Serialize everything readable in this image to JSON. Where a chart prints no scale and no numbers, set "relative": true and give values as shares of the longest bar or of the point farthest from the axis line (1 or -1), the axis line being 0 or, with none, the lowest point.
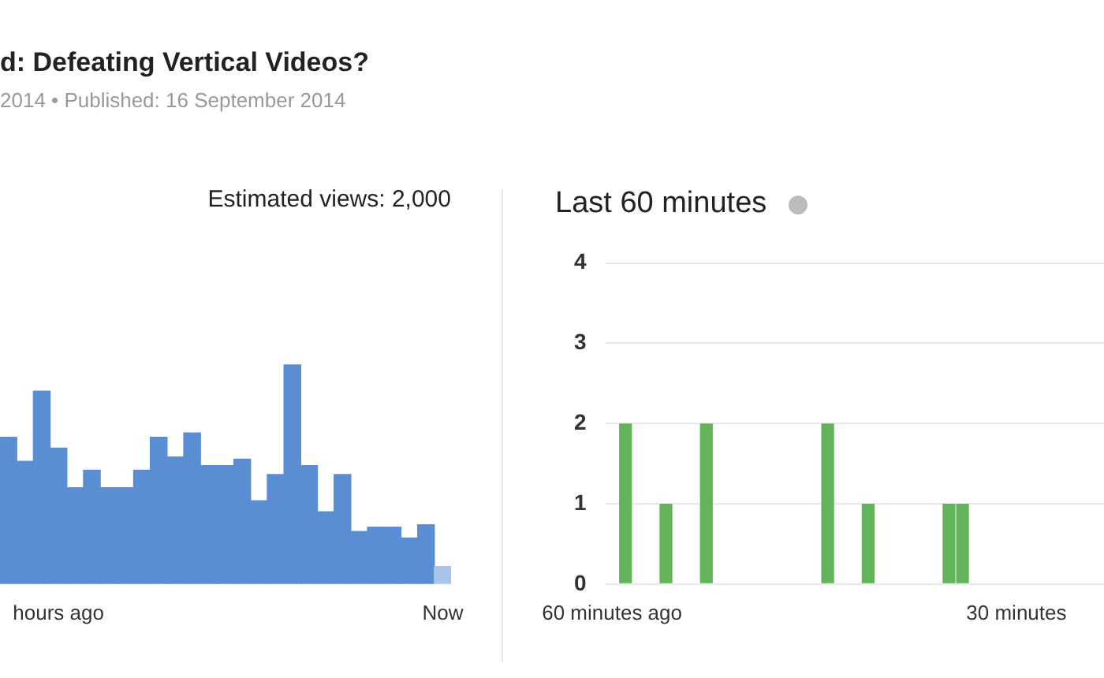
{
  "chart_data": [
    {
      "type": "bar",
      "title": "Estimated views: 2,000",
      "annotations": [
        "d: Defeating Vertical Videos?",
        "2014 • Published: 16 September 2014"
      ],
      "categories": [
        null,
        null,
        null,
        "hours ago",
        null,
        null,
        null,
        null,
        null,
        null,
        null,
        null,
        null,
        null,
        null,
        null,
        null,
        null,
        null,
        null,
        null,
        null,
        null,
        null,
        null,
        null,
        "Now"
      ],
      "relative": true,
      "series": [
        {
          "values": [
            0.67,
            0.56,
            0.88,
            0.62,
            0.44,
            0.52,
            0.44,
            0.44,
            0.52,
            0.67,
            0.58,
            0.69,
            0.54,
            0.54,
            0.57,
            0.38,
            0.5,
            1,
            0.54,
            0.33,
            0.5,
            0.24,
            0.26,
            0.26,
            0.21,
            0.27,
            0.08
          ],
          "colors": [
            "#5b8dd2",
            "#5b8dd2",
            "#5b8dd2",
            "#5b8dd2",
            "#5b8dd2",
            "#5b8dd2",
            "#5b8dd2",
            "#5b8dd2",
            "#5b8dd2",
            "#5b8dd2",
            "#5b8dd2",
            "#5b8dd2",
            "#5b8dd2",
            "#5b8dd2",
            "#5b8dd2",
            "#5b8dd2",
            "#5b8dd2",
            "#5b8dd2",
            "#5b8dd2",
            "#5b8dd2",
            "#5b8dd2",
            "#5b8dd2",
            "#5b8dd2",
            "#5b8dd2",
            "#5b8dd2",
            "#5b8dd2",
            "#a8c4ec"
          ]
        }
      ]
    },
    {
      "type": "bar",
      "title": "Last 60 minutes",
      "categories": [
        "60 minutes ago",
        null,
        null,
        null,
        null,
        null,
        null,
        null,
        null,
        null,
        null,
        null,
        null,
        null,
        null,
        null,
        null,
        null,
        null,
        null,
        null,
        null,
        null,
        null,
        null,
        null,
        null,
        null,
        null,
        null,
        "30 minutes",
        null,
        null,
        null,
        null,
        null,
        null
      ],
      "ylim": [
        0,
        4
      ],
      "yticks": [
        0,
        1,
        2,
        3,
        4
      ],
      "grid": "y",
      "series": [
        {
          "color": "#62b35a",
          "values": [
            0,
            2,
            0,
            0,
            1,
            0,
            0,
            2,
            0,
            0,
            0,
            0,
            0,
            0,
            0,
            0,
            2,
            0,
            0,
            1,
            0,
            0,
            0,
            0,
            0,
            1,
            1,
            0,
            0,
            0,
            0,
            0,
            0,
            0,
            0,
            0,
            0
          ]
        }
      ]
    }
  ]
}
